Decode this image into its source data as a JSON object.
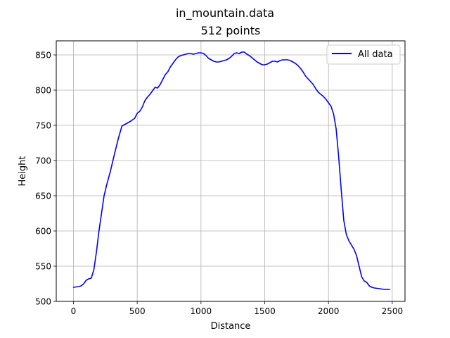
{
  "chart_data": {
    "type": "line",
    "suptitle": "in_mountain.data",
    "title": "512 points",
    "xlabel": "Distance",
    "ylabel": "Height",
    "xlim": [
      -135,
      2600
    ],
    "ylim": [
      500,
      870
    ],
    "xticks": [
      0,
      500,
      1000,
      1500,
      2000,
      2500
    ],
    "yticks": [
      500,
      550,
      600,
      650,
      700,
      750,
      800,
      850
    ],
    "grid": true,
    "legend": {
      "position": "top-right"
    },
    "series": [
      {
        "name": "All data",
        "color": "#0000ff",
        "x": [
          0,
          40,
          60,
          80,
          100,
          120,
          140,
          160,
          180,
          200,
          220,
          240,
          260,
          290,
          320,
          350,
          380,
          400,
          420,
          450,
          480,
          500,
          520,
          540,
          560,
          580,
          600,
          620,
          640,
          660,
          680,
          700,
          720,
          740,
          760,
          780,
          800,
          820,
          840,
          860,
          880,
          900,
          920,
          940,
          960,
          980,
          1000,
          1020,
          1040,
          1060,
          1080,
          1100,
          1120,
          1140,
          1160,
          1180,
          1200,
          1220,
          1240,
          1260,
          1280,
          1300,
          1320,
          1340,
          1360,
          1380,
          1400,
          1420,
          1440,
          1460,
          1480,
          1500,
          1520,
          1540,
          1560,
          1580,
          1600,
          1620,
          1640,
          1660,
          1680,
          1700,
          1720,
          1740,
          1760,
          1780,
          1800,
          1820,
          1840,
          1860,
          1880,
          1900,
          1920,
          1940,
          1960,
          1980,
          2000,
          2020,
          2040,
          2060,
          2080,
          2100,
          2120,
          2140,
          2160,
          2180,
          2200,
          2220,
          2240,
          2260,
          2280,
          2300,
          2320,
          2340,
          2360,
          2400,
          2440,
          2480
        ],
        "y": [
          520,
          521,
          522,
          525,
          530,
          532,
          533,
          545,
          570,
          600,
          625,
          650,
          665,
          685,
          708,
          730,
          749,
          751,
          753,
          756,
          760,
          767,
          770,
          776,
          785,
          790,
          794,
          799,
          804,
          803,
          808,
          815,
          822,
          826,
          833,
          838,
          843,
          847,
          849,
          850,
          851,
          852,
          852,
          851,
          852,
          853,
          853,
          852,
          849,
          845,
          843,
          841,
          840,
          840,
          841,
          842,
          843,
          845,
          848,
          852,
          853,
          852,
          854,
          854,
          851,
          849,
          846,
          843,
          840,
          838,
          836,
          836,
          837,
          839,
          841,
          841,
          840,
          842,
          843,
          843,
          843,
          842,
          840,
          838,
          835,
          831,
          826,
          820,
          816,
          812,
          808,
          802,
          797,
          794,
          791,
          787,
          782,
          777,
          766,
          745,
          705,
          658,
          615,
          595,
          586,
          580,
          574,
          565,
          550,
          535,
          529,
          527,
          522,
          520,
          519,
          518,
          517,
          517
        ]
      }
    ]
  }
}
